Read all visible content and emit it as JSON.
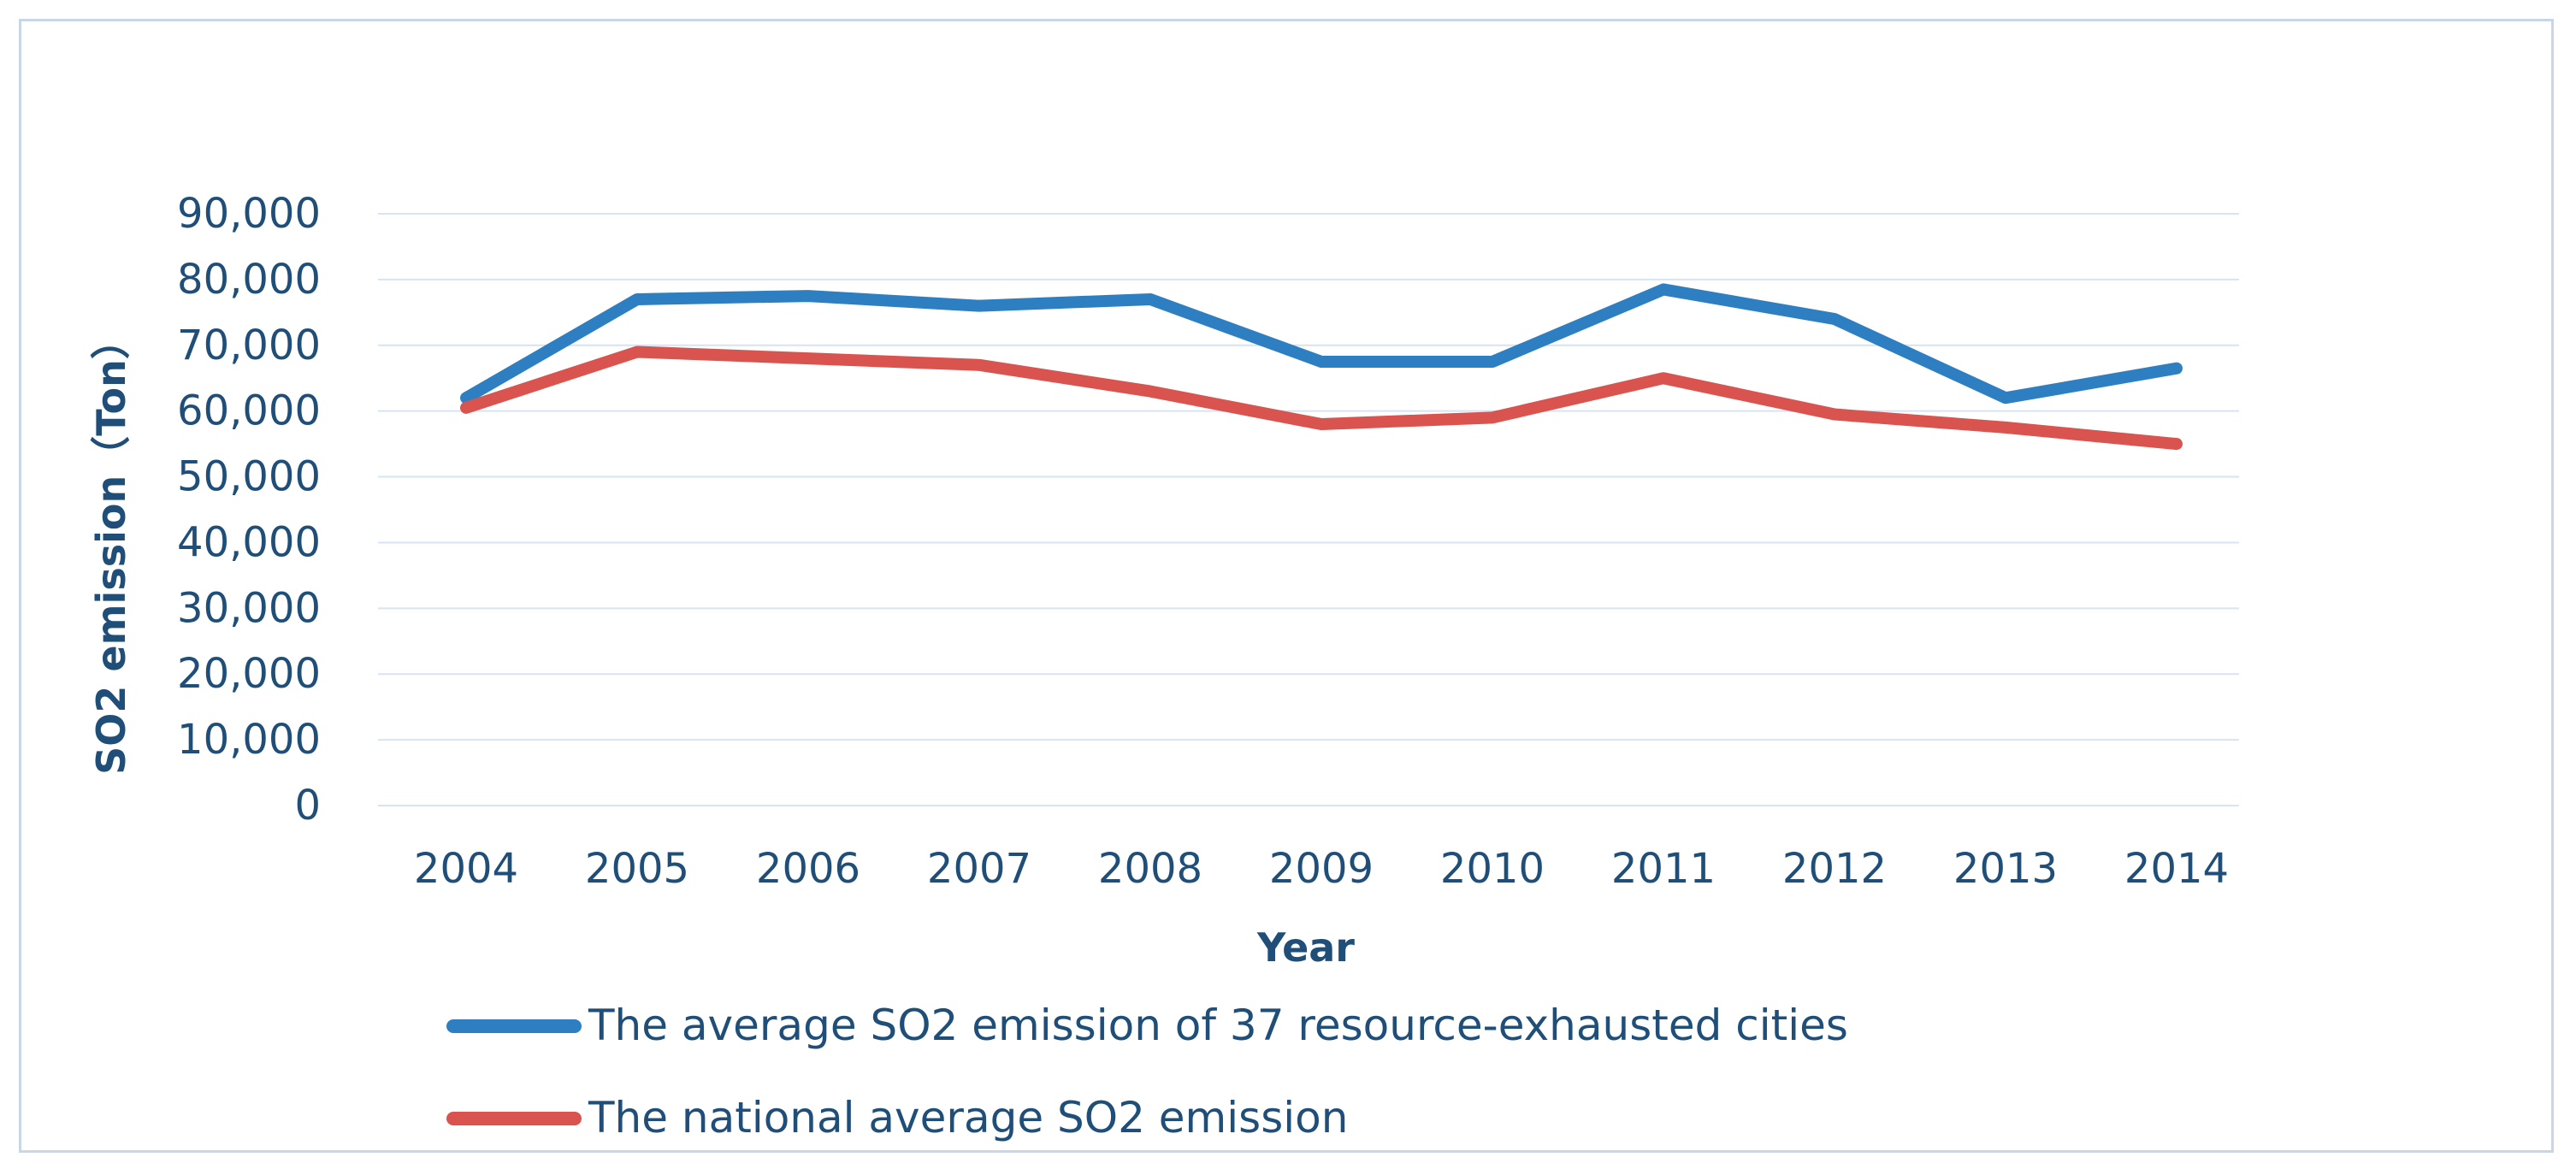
{
  "chart_data": {
    "type": "line",
    "title": "",
    "xlabel": "Year",
    "ylabel": "SO2 emission（Ton）",
    "categories": [
      "2004",
      "2005",
      "2006",
      "2007",
      "2008",
      "2009",
      "2010",
      "2011",
      "2012",
      "2013",
      "2014"
    ],
    "y_ticks": [
      "0",
      "10,000",
      "20,000",
      "30,000",
      "40,000",
      "50,000",
      "60,000",
      "70,000",
      "80,000",
      "90,000"
    ],
    "ylim": [
      0,
      90000
    ],
    "grid": true,
    "legend_position": "bottom",
    "series": [
      {
        "name": "The average SO2 emission of 37 resource-exhausted cities",
        "color": "#2e7fc1",
        "values": [
          62000,
          77000,
          77500,
          76000,
          77000,
          67500,
          67500,
          78500,
          74000,
          62000,
          66500
        ]
      },
      {
        "name": "The national average SO2 emission",
        "color": "#d9534f",
        "values": [
          60500,
          69000,
          68000,
          67000,
          63000,
          58000,
          59000,
          65000,
          59500,
          57500,
          55000
        ]
      }
    ]
  }
}
